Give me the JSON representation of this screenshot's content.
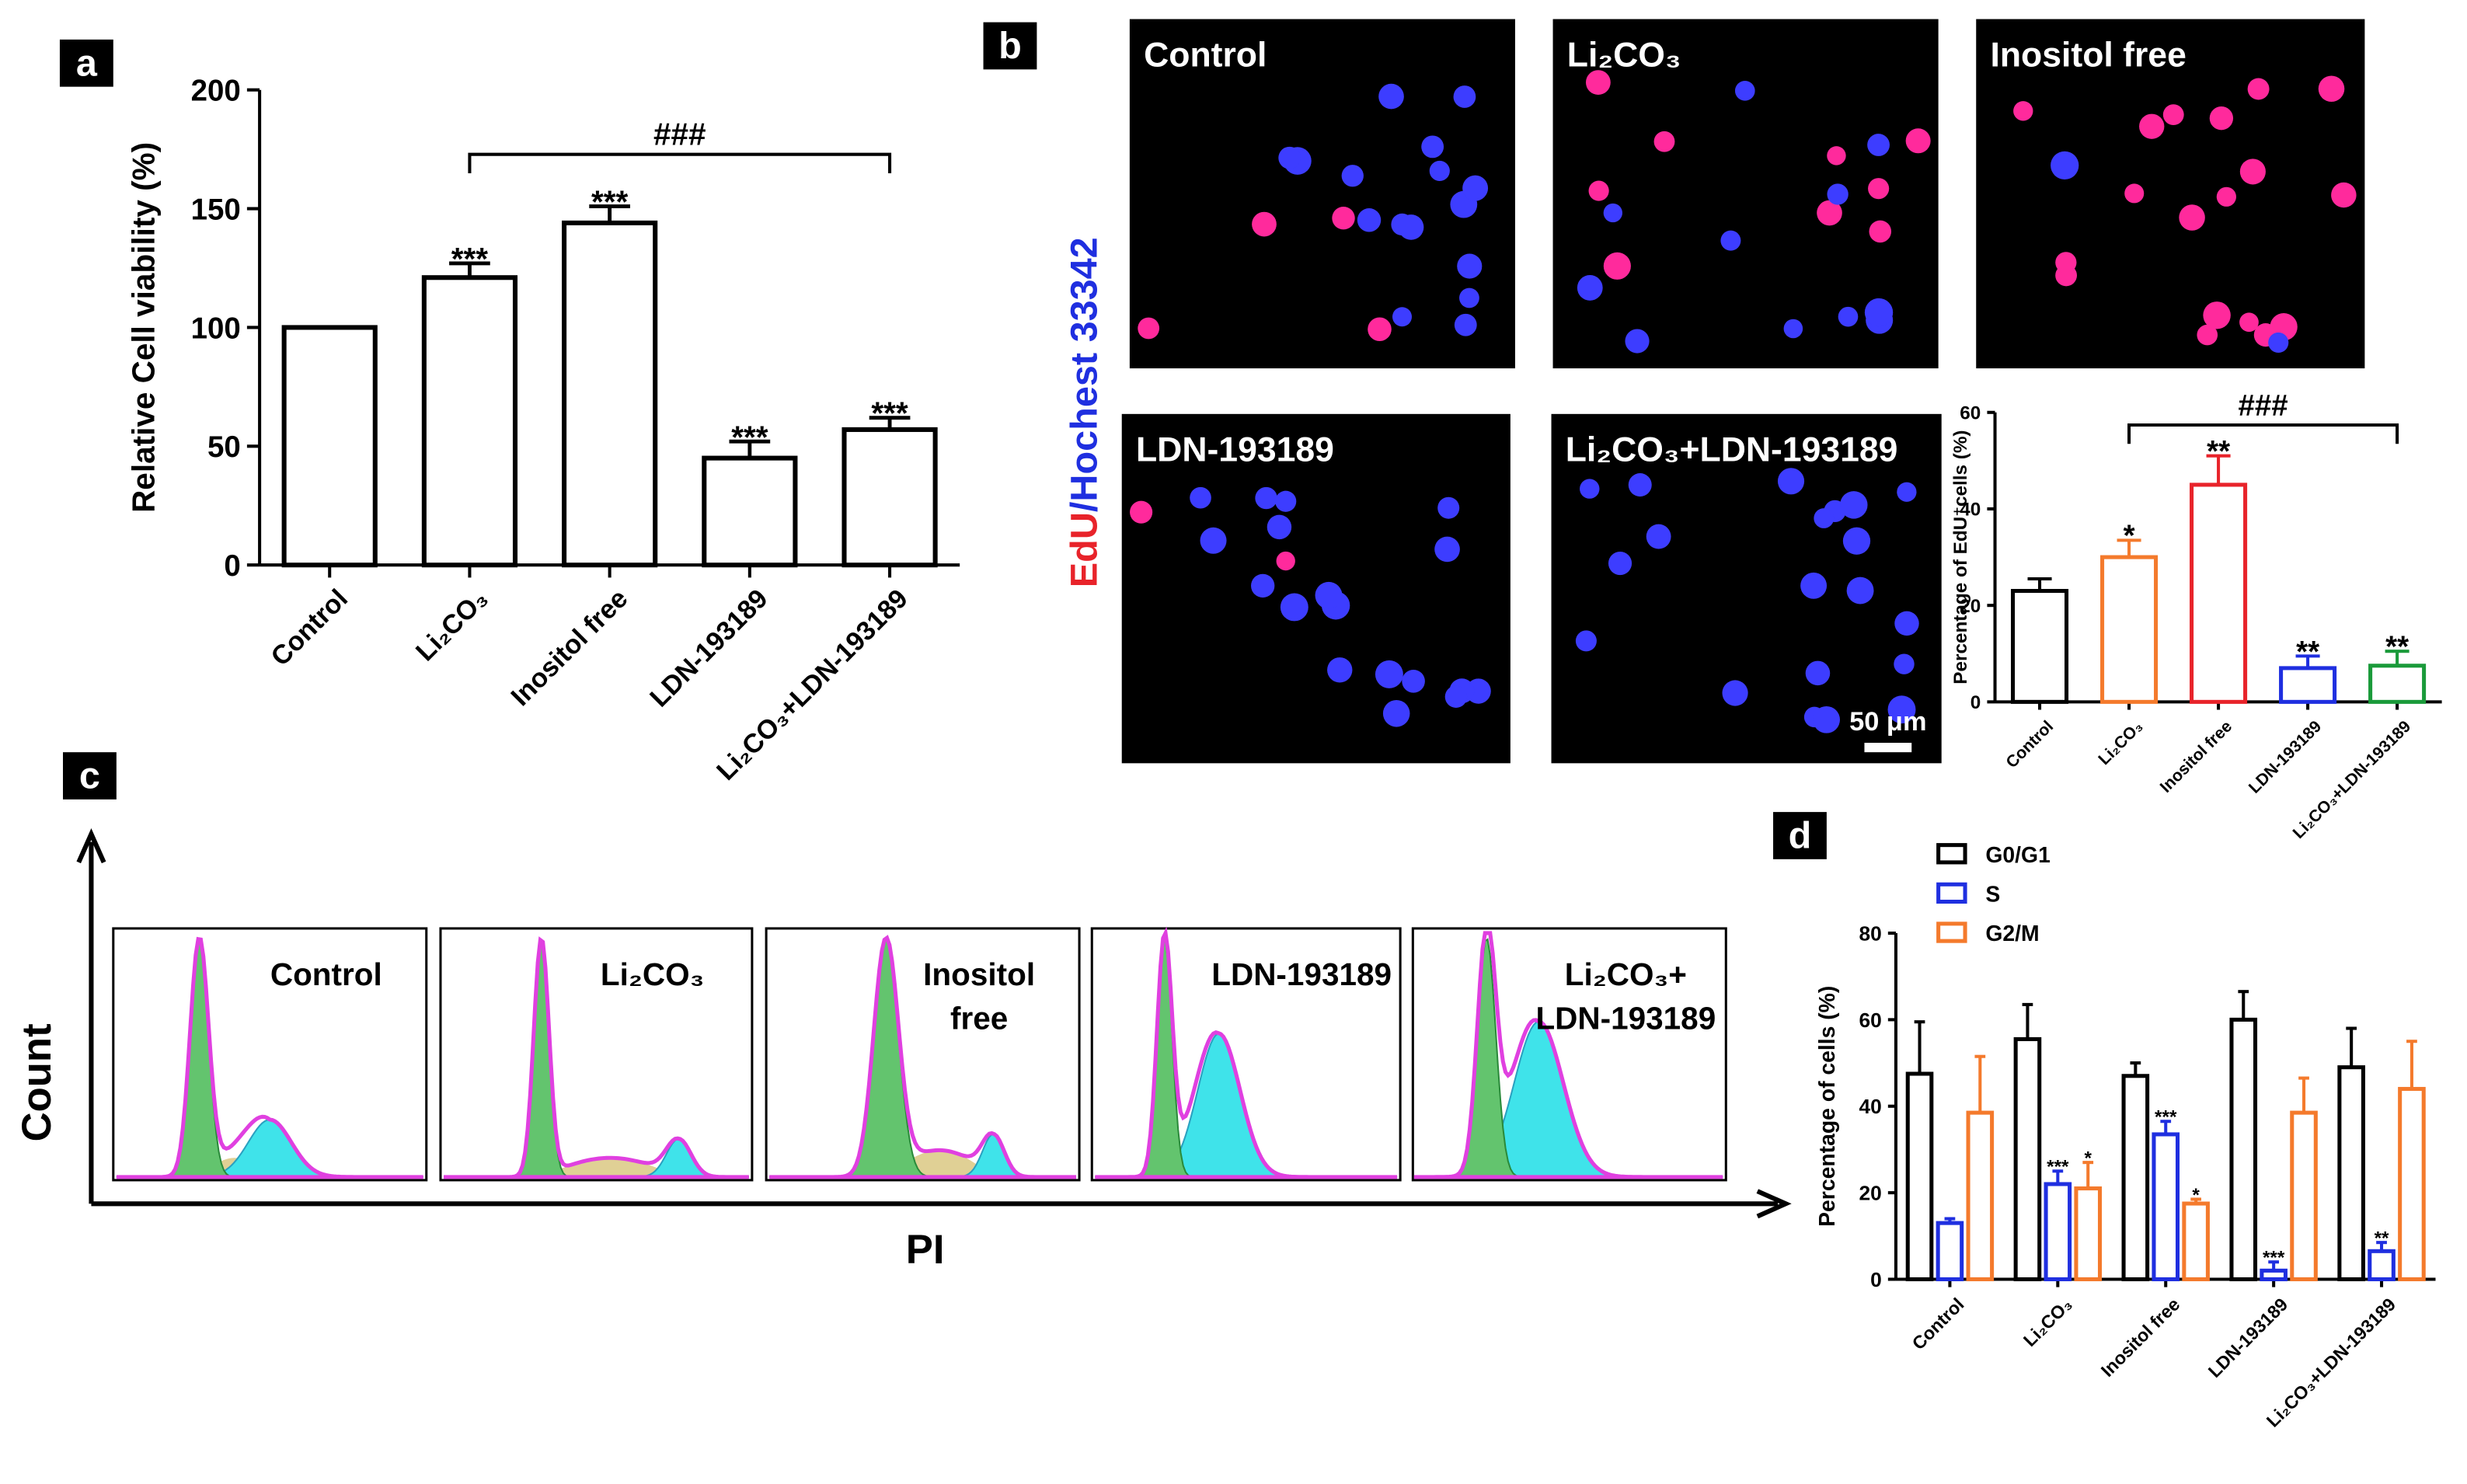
{
  "panel_letters": [
    "a",
    "b",
    "c",
    "d"
  ],
  "chart_data": [
    {
      "type": "bar",
      "ylabel": "Relative Cell viability (%)",
      "categories": [
        "Control",
        "Li₂CO₃",
        "Inositol free",
        "LDN-193189",
        "Li₂CO₃+LDN-193189"
      ],
      "values": [
        100,
        121,
        144,
        45,
        57
      ],
      "errors": [
        0,
        6,
        7,
        7,
        5
      ],
      "color": "#000000",
      "significance": [
        null,
        "***",
        "***",
        "***",
        "***"
      ],
      "bracket_label": "###",
      "ylim": [
        0,
        200
      ],
      "yticks": [
        0,
        50,
        100,
        150,
        200
      ]
    },
    {
      "type": "bar",
      "ylabel": "Percentage of EdU⁺cells (%)",
      "categories": [
        "Control",
        "Li₂CO₃",
        "Inositol free",
        "LDN-193189",
        "Li₂CO₃+LDN-193189"
      ],
      "values": [
        23,
        30,
        45,
        7,
        7.5
      ],
      "errors": [
        2.5,
        3.5,
        6,
        2.5,
        3
      ],
      "colors": [
        "#000000",
        "#f47a2c",
        "#e8232a",
        "#1f2fe0",
        "#1a9a3a"
      ],
      "significance": [
        null,
        "*",
        "**",
        "**",
        "**"
      ],
      "bracket_label": "###",
      "ylim": [
        0,
        60
      ],
      "yticks": [
        0,
        20,
        40,
        60
      ]
    },
    {
      "type": "bar",
      "ylabel": "Percentage of cells (%)",
      "categories": [
        "Control",
        "Li₂CO₃",
        "Inositol free",
        "LDN-193189",
        "Li₂CO₃+LDN-193189"
      ],
      "series": [
        {
          "name": "G0/G1",
          "color": "#000000",
          "values": [
            47.5,
            55.5,
            47,
            60,
            49
          ],
          "errors": [
            12,
            8,
            3,
            6.5,
            9
          ]
        },
        {
          "name": "S",
          "color": "#1f2fe0",
          "values": [
            13,
            22,
            33.5,
            2,
            6.5
          ],
          "errors": [
            1,
            3,
            3,
            2,
            2
          ],
          "significance": [
            null,
            "***",
            "***",
            "***",
            "**"
          ]
        },
        {
          "name": "G2/M",
          "color": "#f47a2c",
          "values": [
            38.5,
            21,
            17.5,
            38.5,
            44
          ],
          "errors": [
            13,
            6,
            1,
            8,
            11
          ],
          "significance": [
            null,
            "*",
            "*",
            null,
            null
          ]
        }
      ],
      "legend": "top-left",
      "ylim": [
        0,
        80
      ],
      "yticks": [
        0,
        20,
        40,
        60,
        80
      ]
    }
  ],
  "micrographs": {
    "labels": [
      "Control",
      "Li₂CO₃",
      "Inositol free",
      "LDN-193189",
      "Li₂CO₃+LDN-193189"
    ],
    "stain_edu": "EdU",
    "stain_hoechst": "/Hochest 33342",
    "scale_bar": "50 μm"
  },
  "flow": {
    "labels": [
      [
        "Control"
      ],
      [
        "Li₂CO₃"
      ],
      [
        "Inositol",
        "free"
      ],
      [
        "LDN-193189"
      ],
      [
        "Li₂CO₃+",
        "LDN-193189"
      ]
    ],
    "x_label": "PI",
    "y_label": "Count"
  }
}
